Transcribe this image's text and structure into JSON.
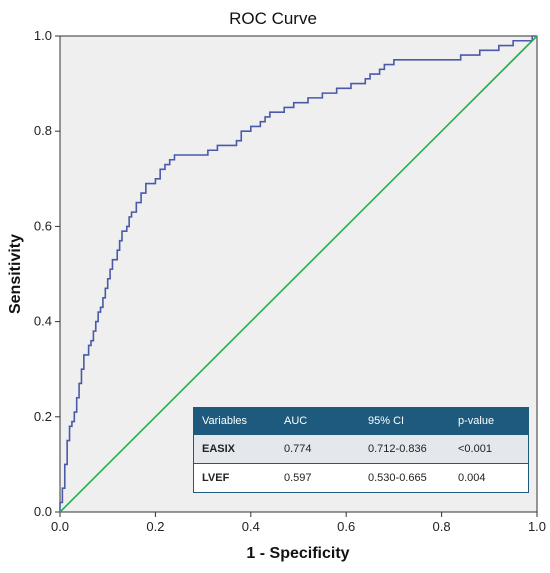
{
  "chart_data": {
    "type": "line",
    "title": "ROC Curve",
    "xlabel": "1 - Specificity",
    "ylabel": "Sensitivity",
    "xlim": [
      0,
      1
    ],
    "ylim": [
      0,
      1
    ],
    "xticks": [
      "0.0",
      "0.2",
      "0.4",
      "0.6",
      "0.8",
      "1.0"
    ],
    "yticks": [
      "0.0",
      "0.2",
      "0.4",
      "0.6",
      "0.8",
      "1.0"
    ],
    "grid": false,
    "series": [
      {
        "color": "#4a5aa8",
        "step": true,
        "points": [
          [
            0.0,
            0.0
          ],
          [
            0.0,
            0.02
          ],
          [
            0.005,
            0.05
          ],
          [
            0.01,
            0.1
          ],
          [
            0.015,
            0.15
          ],
          [
            0.02,
            0.18
          ],
          [
            0.025,
            0.19
          ],
          [
            0.03,
            0.21
          ],
          [
            0.035,
            0.24
          ],
          [
            0.04,
            0.27
          ],
          [
            0.045,
            0.3
          ],
          [
            0.05,
            0.33
          ],
          [
            0.06,
            0.35
          ],
          [
            0.065,
            0.36
          ],
          [
            0.07,
            0.38
          ],
          [
            0.075,
            0.4
          ],
          [
            0.08,
            0.42
          ],
          [
            0.085,
            0.43
          ],
          [
            0.09,
            0.45
          ],
          [
            0.095,
            0.47
          ],
          [
            0.1,
            0.49
          ],
          [
            0.105,
            0.51
          ],
          [
            0.11,
            0.53
          ],
          [
            0.12,
            0.55
          ],
          [
            0.125,
            0.57
          ],
          [
            0.13,
            0.59
          ],
          [
            0.14,
            0.6
          ],
          [
            0.145,
            0.62
          ],
          [
            0.15,
            0.63
          ],
          [
            0.16,
            0.65
          ],
          [
            0.17,
            0.67
          ],
          [
            0.18,
            0.69
          ],
          [
            0.2,
            0.7
          ],
          [
            0.21,
            0.72
          ],
          [
            0.22,
            0.73
          ],
          [
            0.23,
            0.74
          ],
          [
            0.24,
            0.75
          ],
          [
            0.29,
            0.75
          ],
          [
            0.31,
            0.76
          ],
          [
            0.33,
            0.77
          ],
          [
            0.37,
            0.78
          ],
          [
            0.38,
            0.8
          ],
          [
            0.4,
            0.81
          ],
          [
            0.42,
            0.82
          ],
          [
            0.43,
            0.83
          ],
          [
            0.44,
            0.84
          ],
          [
            0.47,
            0.85
          ],
          [
            0.49,
            0.86
          ],
          [
            0.52,
            0.87
          ],
          [
            0.55,
            0.88
          ],
          [
            0.58,
            0.89
          ],
          [
            0.61,
            0.9
          ],
          [
            0.64,
            0.91
          ],
          [
            0.65,
            0.92
          ],
          [
            0.67,
            0.93
          ],
          [
            0.68,
            0.94
          ],
          [
            0.7,
            0.95
          ],
          [
            0.83,
            0.95
          ],
          [
            0.84,
            0.96
          ],
          [
            0.88,
            0.97
          ],
          [
            0.92,
            0.98
          ],
          [
            0.95,
            0.99
          ],
          [
            0.98,
            0.99
          ],
          [
            0.99,
            1.0
          ],
          [
            1.0,
            1.0
          ]
        ]
      },
      {
        "color": "#22b14c",
        "points": [
          [
            0,
            0
          ],
          [
            1,
            1
          ]
        ]
      }
    ],
    "table": {
      "headers": [
        "Variables",
        "AUC",
        "95% CI",
        "p-value"
      ],
      "rows": [
        [
          "EASIX",
          "0.774",
          "0.712-0.836",
          "<0.001"
        ],
        [
          "LVEF",
          "0.597",
          "0.530-0.665",
          "0.004"
        ]
      ]
    }
  }
}
